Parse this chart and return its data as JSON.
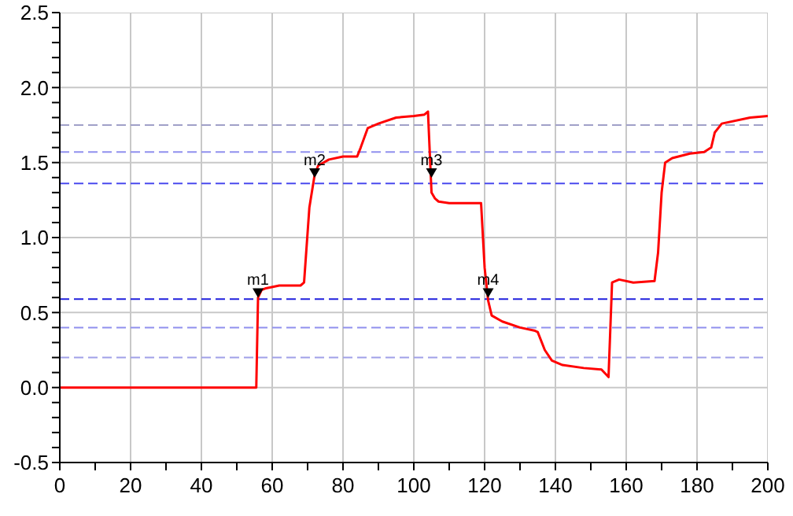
{
  "chart_data": {
    "type": "line",
    "x": [
      0,
      10,
      20,
      30,
      40,
      50,
      55,
      55.5,
      56,
      57,
      58,
      62,
      68,
      69,
      70.5,
      72,
      73,
      76,
      80,
      84,
      85,
      87,
      90,
      95,
      100,
      103,
      104,
      105,
      106,
      107,
      110,
      115,
      119,
      120,
      121,
      122,
      125,
      130,
      134,
      135,
      137,
      139,
      142,
      148,
      153,
      155,
      156,
      158,
      162,
      168,
      169,
      170,
      171,
      173,
      178,
      182,
      184,
      185,
      187,
      195,
      200
    ],
    "series": [
      {
        "type": "scatter",
        "color": "#000000",
        "marker": "triangle",
        "x": [
          56,
          72,
          105,
          121
        ],
        "values": [
          0.63,
          1.43,
          1.43,
          0.63
        ]
      },
      {
        "color": "#ff0000",
        "values": [
          0,
          0,
          0,
          0,
          0,
          0,
          0,
          0,
          0.6,
          0.65,
          0.66,
          0.68,
          0.68,
          0.7,
          1.2,
          1.42,
          1.48,
          1.52,
          1.54,
          1.54,
          1.6,
          1.73,
          1.76,
          1.8,
          1.81,
          1.82,
          1.84,
          1.3,
          1.26,
          1.24,
          1.23,
          1.23,
          1.23,
          0.8,
          0.58,
          0.48,
          0.44,
          0.4,
          0.38,
          0.37,
          0.25,
          0.18,
          0.15,
          0.13,
          0.12,
          0.07,
          0.7,
          0.72,
          0.7,
          0.71,
          0.9,
          1.3,
          1.5,
          1.53,
          1.56,
          1.57,
          1.6,
          1.7,
          1.76,
          1.8,
          1.81
        ]
      }
    ],
    "xlim": [
      0,
      200
    ],
    "xticks": [
      0,
      {
        "value": 10,
        "label": null
      },
      20,
      {
        "value": 30,
        "label": null
      },
      40,
      {
        "value": 50,
        "label": null
      },
      60,
      {
        "value": 70,
        "label": null
      },
      80,
      {
        "value": 90,
        "label": null
      },
      100,
      {
        "value": 110,
        "label": null
      },
      120,
      {
        "value": 130,
        "label": null
      },
      140,
      {
        "value": 150,
        "label": null
      },
      160,
      {
        "value": 170,
        "label": null
      },
      180,
      {
        "value": 190,
        "label": null
      },
      200
    ],
    "ylim": [
      -0.5,
      2.5
    ],
    "yticks": [
      {
        "value": -0.5,
        "label": "-0.5"
      },
      {
        "value": -0.4,
        "label": null
      },
      {
        "value": -0.3,
        "label": null
      },
      {
        "value": -0.2,
        "label": null
      },
      {
        "value": -0.1,
        "label": null
      },
      {
        "value": 0,
        "label": "0.0"
      },
      {
        "value": 0.1,
        "label": null
      },
      {
        "value": 0.2,
        "label": null
      },
      {
        "value": 0.3,
        "label": null
      },
      {
        "value": 0.4,
        "label": null
      },
      {
        "value": 0.5,
        "label": "0.5"
      },
      {
        "value": 0.6,
        "label": null
      },
      {
        "value": 0.7,
        "label": null
      },
      {
        "value": 0.8,
        "label": null
      },
      {
        "value": 0.9,
        "label": null
      },
      {
        "value": 1,
        "label": "1.0"
      },
      {
        "value": 1.1,
        "label": null
      },
      {
        "value": 1.2,
        "label": null
      },
      {
        "value": 1.3,
        "label": null
      },
      {
        "value": 1.4,
        "label": null
      },
      {
        "value": 1.5,
        "label": "1.5"
      },
      {
        "value": 1.6,
        "label": null
      },
      {
        "value": 1.7,
        "label": null
      },
      {
        "value": 1.8,
        "label": null
      },
      {
        "value": 1.9,
        "label": null
      },
      {
        "value": 2,
        "label": "2.0"
      },
      {
        "value": 2.1,
        "label": null
      },
      {
        "value": 2.2,
        "label": null
      },
      {
        "value": 2.3,
        "label": null
      },
      {
        "value": 2.4,
        "label": null
      },
      {
        "value": 2.5,
        "label": "2.5"
      }
    ],
    "grid": true,
    "marker": "none",
    "line_style": "solid",
    "ref_lines": [
      {
        "axis": "y",
        "value": 1.75,
        "color": "#a0a0c8",
        "line_style": "dashed"
      },
      {
        "axis": "y",
        "value": 1.57,
        "color": "#9090ee",
        "line_style": "dashed"
      },
      {
        "axis": "y",
        "value": 1.36,
        "color": "#4a4aee",
        "line_style": "dashed"
      },
      {
        "axis": "y",
        "value": 0.59,
        "color": "#2020dd",
        "line_style": "dashed"
      },
      {
        "axis": "y",
        "value": 0.4,
        "color": "#9090ee",
        "line_style": "dashed"
      },
      {
        "axis": "y",
        "value": 0.2,
        "color": "#a0a0e8",
        "line_style": "dashed"
      }
    ],
    "annotations": [
      {
        "text": "m1",
        "x": 56,
        "y": 0.6
      },
      {
        "text": "m2",
        "x": 72,
        "y": 1.4
      },
      {
        "text": "m3",
        "x": 105,
        "y": 1.4
      },
      {
        "text": "m4",
        "x": 121,
        "y": 0.6
      }
    ]
  }
}
